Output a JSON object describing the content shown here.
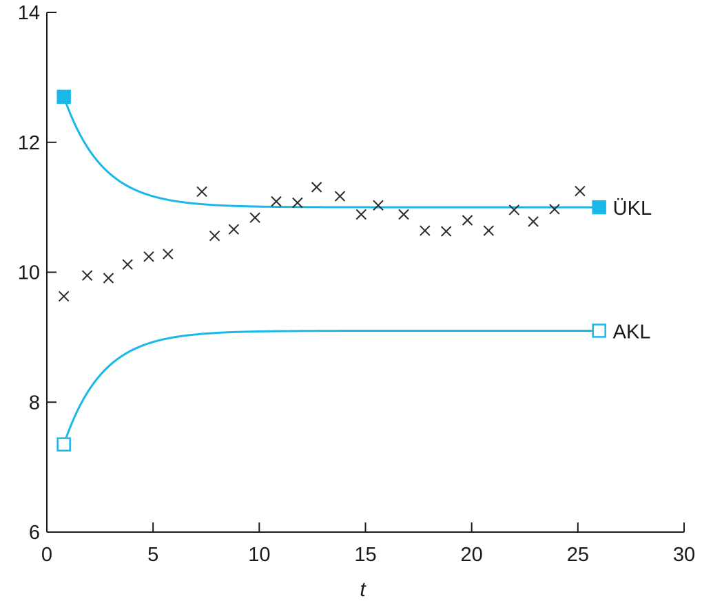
{
  "chart_data": {
    "type": "line",
    "title": "",
    "xlabel": "t",
    "ylabel": "",
    "xlim": [
      0,
      30
    ],
    "ylim": [
      6,
      14
    ],
    "xticks": [
      0,
      5,
      10,
      15,
      20,
      25,
      30
    ],
    "yticks": [
      6,
      8,
      10,
      12,
      14
    ],
    "grid": false,
    "line_color": "#1ab8e8",
    "marker_color": "#2a2a2a",
    "series": [
      {
        "name": "ÜKL",
        "start": [
          0.8,
          12.7
        ],
        "end": [
          26.0,
          11.0
        ],
        "equilibrium": 11.0,
        "marker": "filled-square"
      },
      {
        "name": "AKL",
        "start": [
          0.8,
          7.35
        ],
        "end": [
          26.0,
          9.1
        ],
        "equilibrium": 9.1,
        "marker": "open-square"
      }
    ],
    "observations": {
      "marker": "x",
      "x": [
        0.8,
        1.9,
        2.9,
        3.8,
        4.8,
        5.7,
        7.3,
        7.9,
        8.8,
        9.8,
        10.8,
        11.8,
        12.7,
        13.8,
        14.8,
        15.6,
        16.8,
        17.8,
        18.8,
        19.8,
        20.8,
        22.0,
        22.9,
        23.9,
        25.1
      ],
      "y": [
        9.63,
        9.95,
        9.91,
        10.12,
        10.24,
        10.28,
        11.24,
        10.56,
        10.66,
        10.84,
        11.09,
        11.07,
        11.31,
        11.17,
        10.89,
        11.03,
        10.89,
        10.64,
        10.63,
        10.8,
        10.64,
        10.96,
        10.78,
        10.97,
        11.25
      ]
    }
  }
}
